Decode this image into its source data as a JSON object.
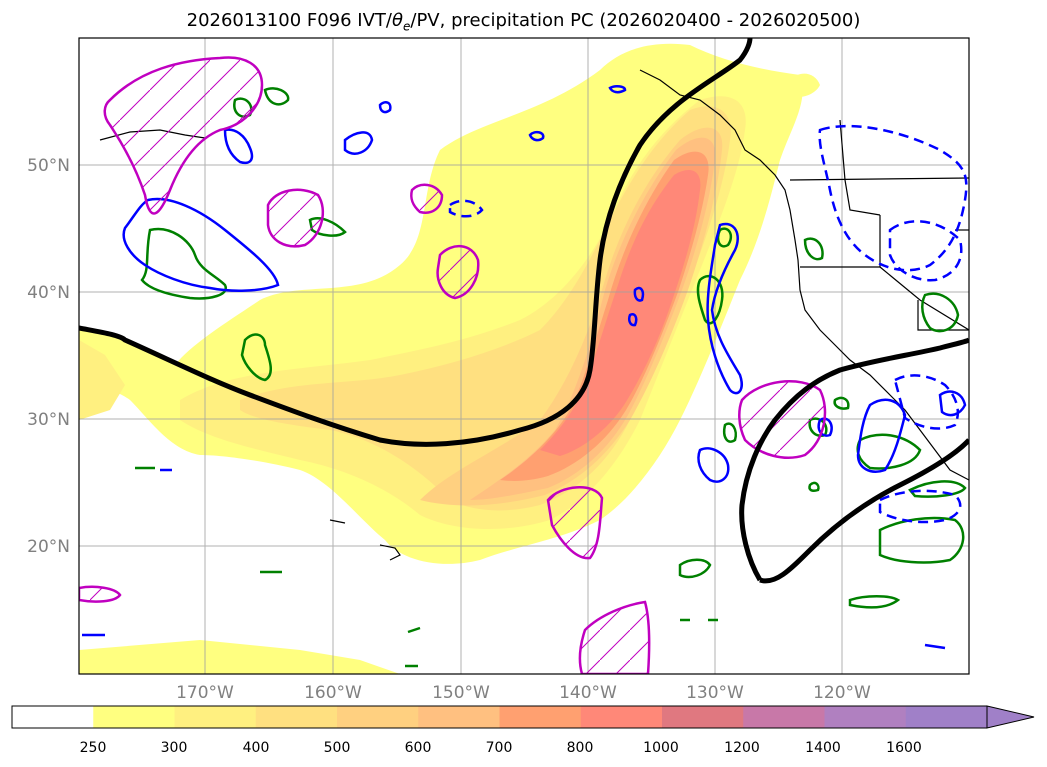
{
  "title": "2026013100 F096 IVT/θe/PV, precipitation PC (2026020400 - 2026020500)",
  "title_parts": {
    "prefix": "2026013100 F096 IVT/",
    "theta": "θ",
    "theta_sub": "e",
    "suffix": "/PV, precipitation PC (2026020400 - 2026020500)"
  },
  "map": {
    "lat_labels": [
      "20°N",
      "30°N",
      "40°N",
      "50°N"
    ],
    "lon_labels": [
      "170°W",
      "160°W",
      "150°W",
      "140°W",
      "130°W",
      "120°W"
    ],
    "region": "North Pacific / US West Coast"
  },
  "colorbar": {
    "ticks": [
      "250",
      "300",
      "400",
      "500",
      "600",
      "700",
      "800",
      "1000",
      "1200",
      "1400",
      "1600"
    ],
    "colors": [
      "#ffffff",
      "#ffff80",
      "#fff080",
      "#ffe080",
      "#ffd080",
      "#ffc080",
      "#ffa070",
      "#ff8878",
      "#e07880",
      "#c878a8",
      "#b080c0",
      "#a080c8"
    ],
    "extend": "max"
  },
  "contour_colors": {
    "black": "#000000",
    "green": "#008000",
    "blue": "#0000ff",
    "magenta": "#c000c0"
  }
}
